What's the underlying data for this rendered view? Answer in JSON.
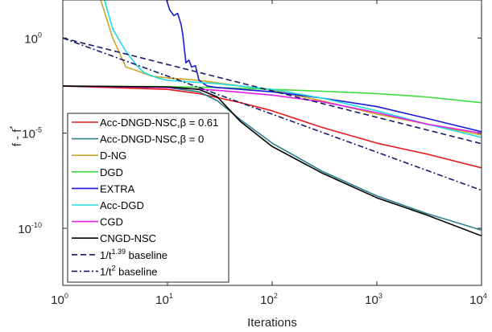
{
  "chart_data": {
    "type": "line",
    "xlabel": "Iterations",
    "ylabel": "f - f",
    "ylabel_sup": "*",
    "xscale": "log",
    "yscale": "log",
    "xlim": [
      1,
      10000
    ],
    "ylim": [
      1e-13,
      100
    ],
    "x_ticks": [
      {
        "value": 1,
        "base": "10",
        "exp": "0"
      },
      {
        "value": 10,
        "base": "10",
        "exp": "1"
      },
      {
        "value": 100,
        "base": "10",
        "exp": "2"
      },
      {
        "value": 1000,
        "base": "10",
        "exp": "3"
      },
      {
        "value": 10000,
        "base": "10",
        "exp": "4"
      }
    ],
    "y_ticks": [
      {
        "value": 1,
        "base": "10",
        "exp": "0"
      },
      {
        "value": 1e-05,
        "base": "10",
        "exp": "-5"
      },
      {
        "value": 1e-10,
        "base": "10",
        "exp": "-10"
      }
    ],
    "legend_position": "left",
    "series": [
      {
        "name": "Acc-DNGD-NSC,",
        "name_beta": "β = 0.61",
        "color": "#e41a1c",
        "dash": "solid",
        "points": [
          [
            1,
            0.003
          ],
          [
            10,
            0.002
          ],
          [
            20,
            0.0012
          ],
          [
            50,
            0.0004
          ],
          [
            100,
            0.00015
          ],
          [
            300,
            2e-05
          ],
          [
            1000,
            3e-06
          ],
          [
            3000,
            8e-07
          ],
          [
            10000,
            1.5e-07
          ]
        ]
      },
      {
        "name": "Acc-DNGD-NSC,",
        "name_beta": "β = 0",
        "color": "#2a7f8a",
        "dash": "solid",
        "points": [
          [
            1,
            0.003
          ],
          [
            10,
            0.0025
          ],
          [
            20,
            0.0015
          ],
          [
            30,
            0.0005
          ],
          [
            50,
            5e-05
          ],
          [
            100,
            3e-06
          ],
          [
            300,
            1e-07
          ],
          [
            1000,
            5e-09
          ],
          [
            3000,
            6e-10
          ],
          [
            10000,
            8e-11
          ]
        ]
      },
      {
        "name": "D-NG",
        "color": "#c8a62c",
        "dash": "solid",
        "points": [
          [
            2.3,
            100
          ],
          [
            3,
            1
          ],
          [
            4,
            0.03
          ],
          [
            5,
            0.02
          ],
          [
            7,
            0.01
          ],
          [
            10,
            0.008
          ],
          [
            20,
            0.006
          ],
          [
            50,
            0.003
          ],
          [
            100,
            0.0018
          ],
          [
            300,
            0.0005
          ],
          [
            1000,
            0.0001
          ],
          [
            3000,
            3e-05
          ],
          [
            10000,
            8e-06
          ]
        ]
      },
      {
        "name": "DGD",
        "color": "#3ddc3d",
        "dash": "solid",
        "points": [
          [
            1,
            0.003
          ],
          [
            10,
            0.0028
          ],
          [
            30,
            0.0025
          ],
          [
            100,
            0.002
          ],
          [
            300,
            0.0016
          ],
          [
            1000,
            0.0012
          ],
          [
            3000,
            0.0008
          ],
          [
            10000,
            0.0004
          ]
        ]
      },
      {
        "name": "EXTRA",
        "color": "#1a1adb",
        "dash": "solid",
        "points": [
          [
            9.8,
            100
          ],
          [
            10.5,
            30
          ],
          [
            11.5,
            15
          ],
          [
            12.5,
            20
          ],
          [
            13.5,
            5
          ],
          [
            14,
            1.5
          ],
          [
            15,
            0.05
          ],
          [
            16,
            0.07
          ],
          [
            17,
            0.03
          ],
          [
            18.5,
            0.035
          ],
          [
            20,
            0.006
          ],
          [
            24,
            0.003
          ],
          [
            30,
            0.0025
          ],
          [
            100,
            0.0015
          ],
          [
            300,
            0.0007
          ],
          [
            1000,
            0.00025
          ],
          [
            3000,
            6e-05
          ],
          [
            10000,
            1.2e-05
          ]
        ]
      },
      {
        "name": "Acc-DGD",
        "color": "#1fdede",
        "dash": "solid",
        "points": [
          [
            2.5,
            100
          ],
          [
            3,
            3
          ],
          [
            4,
            0.2
          ],
          [
            5,
            0.04
          ],
          [
            6,
            0.015
          ],
          [
            8,
            0.008
          ],
          [
            10,
            0.006
          ],
          [
            30,
            0.004
          ],
          [
            100,
            0.002
          ],
          [
            300,
            0.0007
          ],
          [
            1000,
            0.00015
          ],
          [
            3000,
            3e-05
          ],
          [
            10000,
            6e-06
          ]
        ]
      },
      {
        "name": "CGD",
        "color": "#e81ce8",
        "dash": "solid",
        "points": [
          [
            1,
            0.003
          ],
          [
            10,
            0.0025
          ],
          [
            30,
            0.0018
          ],
          [
            100,
            0.001
          ],
          [
            300,
            0.00045
          ],
          [
            1000,
            0.00012
          ],
          [
            3000,
            3e-05
          ],
          [
            10000,
            1e-05
          ]
        ]
      },
      {
        "name": "CNGD-NSC",
        "color": "#000000",
        "dash": "solid",
        "points": [
          [
            1,
            0.003
          ],
          [
            10,
            0.0027
          ],
          [
            20,
            0.002
          ],
          [
            30,
            0.0008
          ],
          [
            50,
            4e-05
          ],
          [
            100,
            2e-06
          ],
          [
            300,
            8e-08
          ],
          [
            1000,
            4e-09
          ],
          [
            3000,
            5e-10
          ],
          [
            10000,
            4e-11
          ]
        ]
      },
      {
        "name": "1/t",
        "name_sup": "1.39",
        "name_suffix": " baseline",
        "color": "#1a1a6b",
        "dash": "7,4",
        "points": [
          [
            1,
            1
          ],
          [
            10000,
            2.8e-06
          ]
        ]
      },
      {
        "name": "1/t",
        "name_sup": "2",
        "name_suffix": " baseline",
        "color": "#1a1a6b",
        "dash": "7,3,2,3",
        "points": [
          [
            1,
            1
          ],
          [
            10000,
            1e-08
          ]
        ]
      }
    ]
  }
}
